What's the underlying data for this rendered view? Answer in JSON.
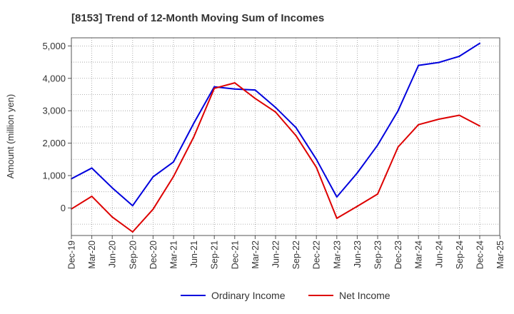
{
  "chart_data": {
    "type": "line",
    "title": "[8153]  Trend of 12-Month Moving Sum of Incomes",
    "xlabel": "",
    "ylabel": "Amount (million yen)",
    "ylim": [
      -850,
      5250
    ],
    "yticks": [
      0,
      1000,
      2000,
      3000,
      4000,
      5000
    ],
    "ytick_labels": [
      "0",
      "1,000",
      "2,000",
      "3,000",
      "4,000",
      "5,000"
    ],
    "grid": true,
    "legend_position": "bottom-center",
    "categories": [
      "Dec-19",
      "Mar-20",
      "Jun-20",
      "Sep-20",
      "Dec-20",
      "Mar-21",
      "Jun-21",
      "Sep-21",
      "Dec-21",
      "Mar-22",
      "Jun-22",
      "Sep-22",
      "Dec-22",
      "Mar-23",
      "Jun-23",
      "Sep-23",
      "Dec-23",
      "Mar-24",
      "Jun-24",
      "Sep-24",
      "Dec-24",
      "Mar-25"
    ],
    "series": [
      {
        "name": "Ordinary Income",
        "color": "#0000dd",
        "values": [
          900,
          1230,
          620,
          70,
          960,
          1420,
          2620,
          3740,
          3670,
          3640,
          3100,
          2480,
          1500,
          340,
          1080,
          1940,
          3000,
          4400,
          4490,
          4680,
          5080,
          null
        ]
      },
      {
        "name": "Net Income",
        "color": "#dd0000",
        "values": [
          -30,
          360,
          -280,
          -740,
          -40,
          970,
          2200,
          3690,
          3860,
          3380,
          2960,
          2230,
          1250,
          -320,
          50,
          430,
          1880,
          2570,
          2740,
          2860,
          2530,
          null
        ]
      }
    ]
  }
}
